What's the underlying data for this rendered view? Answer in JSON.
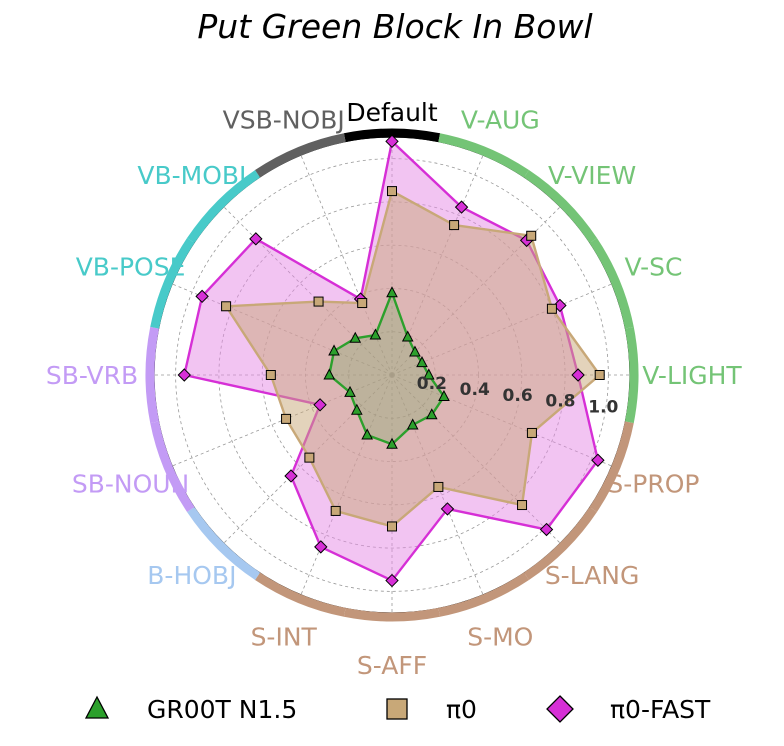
{
  "chart_data": {
    "type": "radar",
    "title": "Put Green Block In Bowl",
    "categories": [
      "Default",
      "V-AUG",
      "V-VIEW",
      "V-SC",
      "V-LIGHT",
      "S-PROP",
      "S-LANG",
      "S-MO",
      "S-AFF",
      "S-INT",
      "B-HOBJ",
      "SB-NOUN",
      "SB-VRB",
      "VB-POSE",
      "VB-MOBJ",
      "VSB-NOBJ"
    ],
    "category_colors": [
      "#000000",
      "#74c476",
      "#74c476",
      "#74c476",
      "#74c476",
      "#c2967a",
      "#c2967a",
      "#c2967a",
      "#c2967a",
      "#c2967a",
      "#a6c8f0",
      "#c39bf5",
      "#c39bf5",
      "#48cac9",
      "#48cac9",
      "#606060"
    ],
    "r_ticks": [
      "0.2",
      "0.4",
      "0.6",
      "0.8",
      "1.0"
    ],
    "r_tick_values": [
      0.2,
      0.4,
      0.6,
      0.8,
      1.0
    ],
    "rlim": [
      0,
      1.1
    ],
    "grid": true,
    "legend_position": "bottom",
    "series": [
      {
        "name": "GR00T N1.5",
        "color": "#2ca02c",
        "fill": "#2ca02c",
        "marker": "triangle",
        "values": [
          0.38,
          0.19,
          0.15,
          0.15,
          0.17,
          0.26,
          0.26,
          0.25,
          0.32,
          0.3,
          0.23,
          0.21,
          0.29,
          0.29,
          0.24,
          0.2
        ]
      },
      {
        "name": "π0",
        "color": "#c8a878",
        "fill": "#c8a878",
        "marker": "square",
        "values": [
          0.85,
          0.75,
          0.91,
          0.8,
          0.96,
          0.7,
          0.85,
          0.56,
          0.7,
          0.68,
          0.54,
          0.53,
          0.56,
          0.83,
          0.48,
          0.36
        ]
      },
      {
        "name": "π0-FAST",
        "color": "#d62fd6",
        "fill": "#e68ae6",
        "marker": "diamond",
        "values": [
          1.08,
          0.84,
          0.88,
          0.84,
          0.86,
          1.03,
          1.01,
          0.67,
          0.95,
          0.86,
          0.66,
          0.36,
          0.96,
          0.95,
          0.89,
          0.38
        ]
      }
    ]
  }
}
